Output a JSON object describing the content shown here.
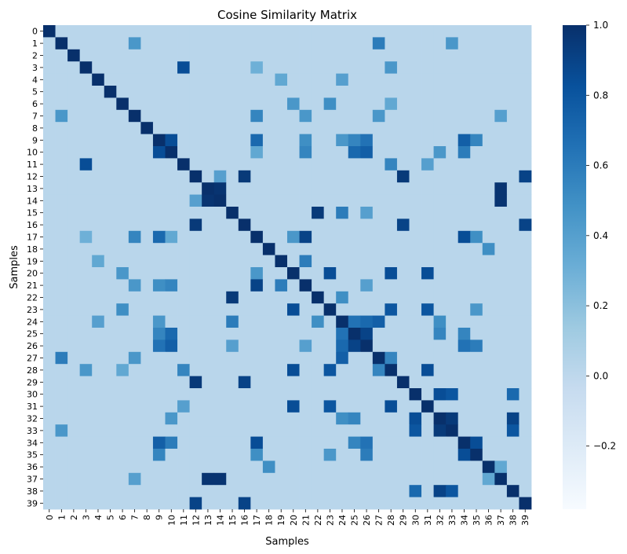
{
  "chart_data": {
    "type": "heatmap",
    "title": "Cosine Similarity Matrix",
    "xlabel": "Samples",
    "ylabel": "Samples",
    "x_tick_labels": [
      "0",
      "1",
      "2",
      "3",
      "4",
      "5",
      "6",
      "7",
      "8",
      "9",
      "10",
      "11",
      "12",
      "13",
      "14",
      "15",
      "16",
      "17",
      "18",
      "19",
      "20",
      "21",
      "22",
      "23",
      "24",
      "25",
      "26",
      "27",
      "28",
      "29",
      "30",
      "31",
      "32",
      "33",
      "34",
      "35",
      "36",
      "37",
      "38",
      "39"
    ],
    "y_tick_labels": [
      "0",
      "1",
      "2",
      "3",
      "4",
      "5",
      "6",
      "7",
      "8",
      "9",
      "10",
      "11",
      "12",
      "13",
      "14",
      "15",
      "16",
      "17",
      "18",
      "19",
      "20",
      "21",
      "22",
      "23",
      "24",
      "25",
      "26",
      "27",
      "28",
      "29",
      "30",
      "31",
      "32",
      "33",
      "34",
      "35",
      "36",
      "37",
      "38",
      "39"
    ],
    "colormap": "Blues",
    "vmin": -0.38,
    "vmax": 1.0,
    "colorbar_ticks": [
      -0.2,
      0.0,
      0.2,
      0.4,
      0.6,
      0.8,
      1.0
    ],
    "colorbar_tick_labels": [
      "−0.2",
      "0.0",
      "0.2",
      "0.4",
      "0.6",
      "0.8",
      "1.0"
    ],
    "diagonal_value": 1.0,
    "default_offdiagonal_value": 0.02,
    "notable_pairs": [
      [
        1,
        7,
        0.45
      ],
      [
        1,
        27,
        0.6
      ],
      [
        1,
        33,
        0.45
      ],
      [
        3,
        11,
        0.85
      ],
      [
        3,
        17,
        0.3
      ],
      [
        3,
        28,
        0.45
      ],
      [
        4,
        19,
        0.35
      ],
      [
        4,
        24,
        0.4
      ],
      [
        6,
        20,
        0.45
      ],
      [
        6,
        23,
        0.5
      ],
      [
        6,
        28,
        0.35
      ],
      [
        7,
        17,
        0.55
      ],
      [
        7,
        21,
        0.45
      ],
      [
        7,
        27,
        0.45
      ],
      [
        7,
        37,
        0.4
      ],
      [
        9,
        10,
        0.85
      ],
      [
        9,
        17,
        0.7
      ],
      [
        9,
        21,
        0.5
      ],
      [
        9,
        24,
        0.45
      ],
      [
        9,
        25,
        0.55
      ],
      [
        9,
        26,
        0.65
      ],
      [
        9,
        34,
        0.75
      ],
      [
        9,
        35,
        0.55
      ],
      [
        10,
        17,
        0.35
      ],
      [
        10,
        21,
        0.55
      ],
      [
        10,
        25,
        0.7
      ],
      [
        10,
        26,
        0.75
      ],
      [
        10,
        32,
        0.45
      ],
      [
        10,
        34,
        0.6
      ],
      [
        11,
        28,
        0.55
      ],
      [
        11,
        31,
        0.4
      ],
      [
        12,
        16,
        0.95
      ],
      [
        12,
        29,
        0.95
      ],
      [
        12,
        39,
        0.9
      ],
      [
        12,
        14,
        0.4
      ],
      [
        13,
        14,
        0.98
      ],
      [
        13,
        37,
        0.98
      ],
      [
        14,
        37,
        0.98
      ],
      [
        15,
        22,
        0.95
      ],
      [
        15,
        24,
        0.6
      ],
      [
        15,
        26,
        0.4
      ],
      [
        16,
        29,
        0.9
      ],
      [
        16,
        39,
        0.9
      ],
      [
        17,
        20,
        0.45
      ],
      [
        17,
        21,
        0.9
      ],
      [
        17,
        34,
        0.85
      ],
      [
        17,
        35,
        0.5
      ],
      [
        18,
        36,
        0.5
      ],
      [
        19,
        21,
        0.6
      ],
      [
        20,
        23,
        0.85
      ],
      [
        20,
        28,
        0.85
      ],
      [
        20,
        31,
        0.85
      ],
      [
        21,
        26,
        0.4
      ],
      [
        22,
        24,
        0.5
      ],
      [
        23,
        28,
        0.8
      ],
      [
        23,
        31,
        0.8
      ],
      [
        23,
        35,
        0.45
      ],
      [
        24,
        25,
        0.65
      ],
      [
        24,
        26,
        0.7
      ],
      [
        24,
        27,
        0.75
      ],
      [
        24,
        32,
        0.5
      ],
      [
        25,
        26,
        0.9
      ],
      [
        25,
        32,
        0.55
      ],
      [
        25,
        34,
        0.55
      ],
      [
        26,
        34,
        0.65
      ],
      [
        26,
        35,
        0.6
      ],
      [
        27,
        28,
        0.55
      ],
      [
        28,
        31,
        0.85
      ],
      [
        30,
        32,
        0.85
      ],
      [
        30,
        33,
        0.8
      ],
      [
        30,
        38,
        0.7
      ],
      [
        32,
        33,
        0.95
      ],
      [
        32,
        38,
        0.9
      ],
      [
        33,
        38,
        0.8
      ],
      [
        34,
        35,
        0.85
      ],
      [
        36,
        37,
        0.35
      ]
    ]
  }
}
